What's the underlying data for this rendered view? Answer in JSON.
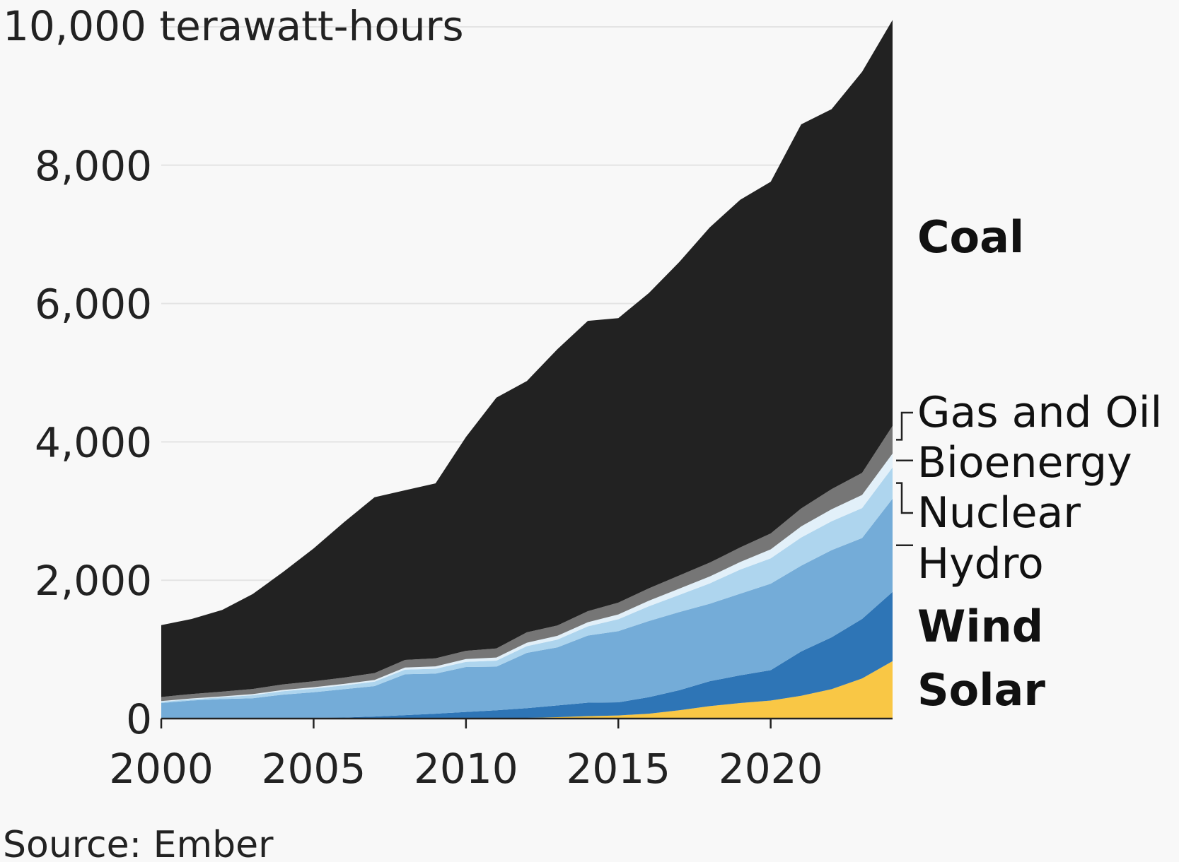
{
  "chart_data": {
    "type": "area",
    "stacked": true,
    "unit_label": "10,000 terawatt-hours",
    "source": "Source: Ember",
    "x": [
      2000,
      2001,
      2002,
      2003,
      2004,
      2005,
      2006,
      2007,
      2008,
      2009,
      2010,
      2011,
      2012,
      2013,
      2014,
      2015,
      2016,
      2017,
      2018,
      2019,
      2020,
      2021,
      2022,
      2023,
      2024
    ],
    "x_ticks": [
      2000,
      2005,
      2010,
      2015,
      2020
    ],
    "x_tick_labels": [
      "2000",
      "2005",
      "2010",
      "2015",
      "2020"
    ],
    "y_ticks": [
      0,
      2000,
      4000,
      6000,
      8000,
      10000
    ],
    "y_tick_labels": [
      "0",
      "2,000",
      "4,000",
      "6,000",
      "8,000"
    ],
    "ylim": [
      0,
      10000
    ],
    "xlim": [
      2000,
      2024
    ],
    "grid": true,
    "series": [
      {
        "name": "Solar",
        "color": "#f9c745",
        "label_color": "#b8860b",
        "values": [
          0,
          0,
          0,
          0,
          0,
          0,
          0,
          0,
          0,
          0,
          1,
          6,
          10,
          20,
          35,
          45,
          70,
          120,
          180,
          225,
          260,
          330,
          425,
          580,
          830
        ]
      },
      {
        "name": "Wind",
        "color": "#2e75b6",
        "label_color": "#2e75b6",
        "values": [
          0,
          1,
          2,
          4,
          6,
          10,
          15,
          30,
          50,
          70,
          95,
          115,
          140,
          170,
          195,
          190,
          240,
          290,
          360,
          400,
          440,
          640,
          750,
          860,
          1000
        ]
      },
      {
        "name": "Hydro",
        "color": "#74acd8",
        "label_color": "#111111",
        "values": [
          225,
          260,
          280,
          290,
          340,
          370,
          410,
          440,
          590,
          580,
          650,
          630,
          800,
          840,
          970,
          1030,
          1100,
          1130,
          1120,
          1180,
          1250,
          1240,
          1260,
          1170,
          1350
        ]
      },
      {
        "name": "Nuclear",
        "color": "#aed5ee",
        "label_color": "#111111",
        "values": [
          17,
          18,
          25,
          43,
          50,
          54,
          55,
          63,
          68,
          70,
          74,
          87,
          97,
          111,
          133,
          171,
          213,
          248,
          294,
          349,
          366,
          408,
          417,
          433,
          451
        ]
      },
      {
        "name": "Bioenergy",
        "color": "#e2f0f9",
        "label_color": "#111111",
        "values": [
          10,
          12,
          14,
          16,
          18,
          20,
          22,
          25,
          30,
          35,
          40,
          45,
          50,
          55,
          60,
          70,
          80,
          90,
          100,
          110,
          130,
          160,
          175,
          190,
          200
        ]
      },
      {
        "name": "Gas and Oil",
        "color": "#767676",
        "label_color": "#111111",
        "values": [
          60,
          64,
          68,
          75,
          80,
          85,
          90,
          100,
          110,
          115,
          120,
          130,
          150,
          150,
          160,
          170,
          180,
          190,
          200,
          210,
          230,
          260,
          290,
          320,
          400
        ]
      },
      {
        "name": "Coal",
        "color": "#222222",
        "label_color": "#000000",
        "values": [
          1038,
          1085,
          1181,
          1372,
          1626,
          1921,
          2248,
          2542,
          2452,
          2530,
          3090,
          3627,
          3633,
          3994,
          4197,
          4114,
          4267,
          4532,
          4846,
          5026,
          5084,
          5552,
          5493,
          5797,
          5869
        ]
      }
    ]
  }
}
